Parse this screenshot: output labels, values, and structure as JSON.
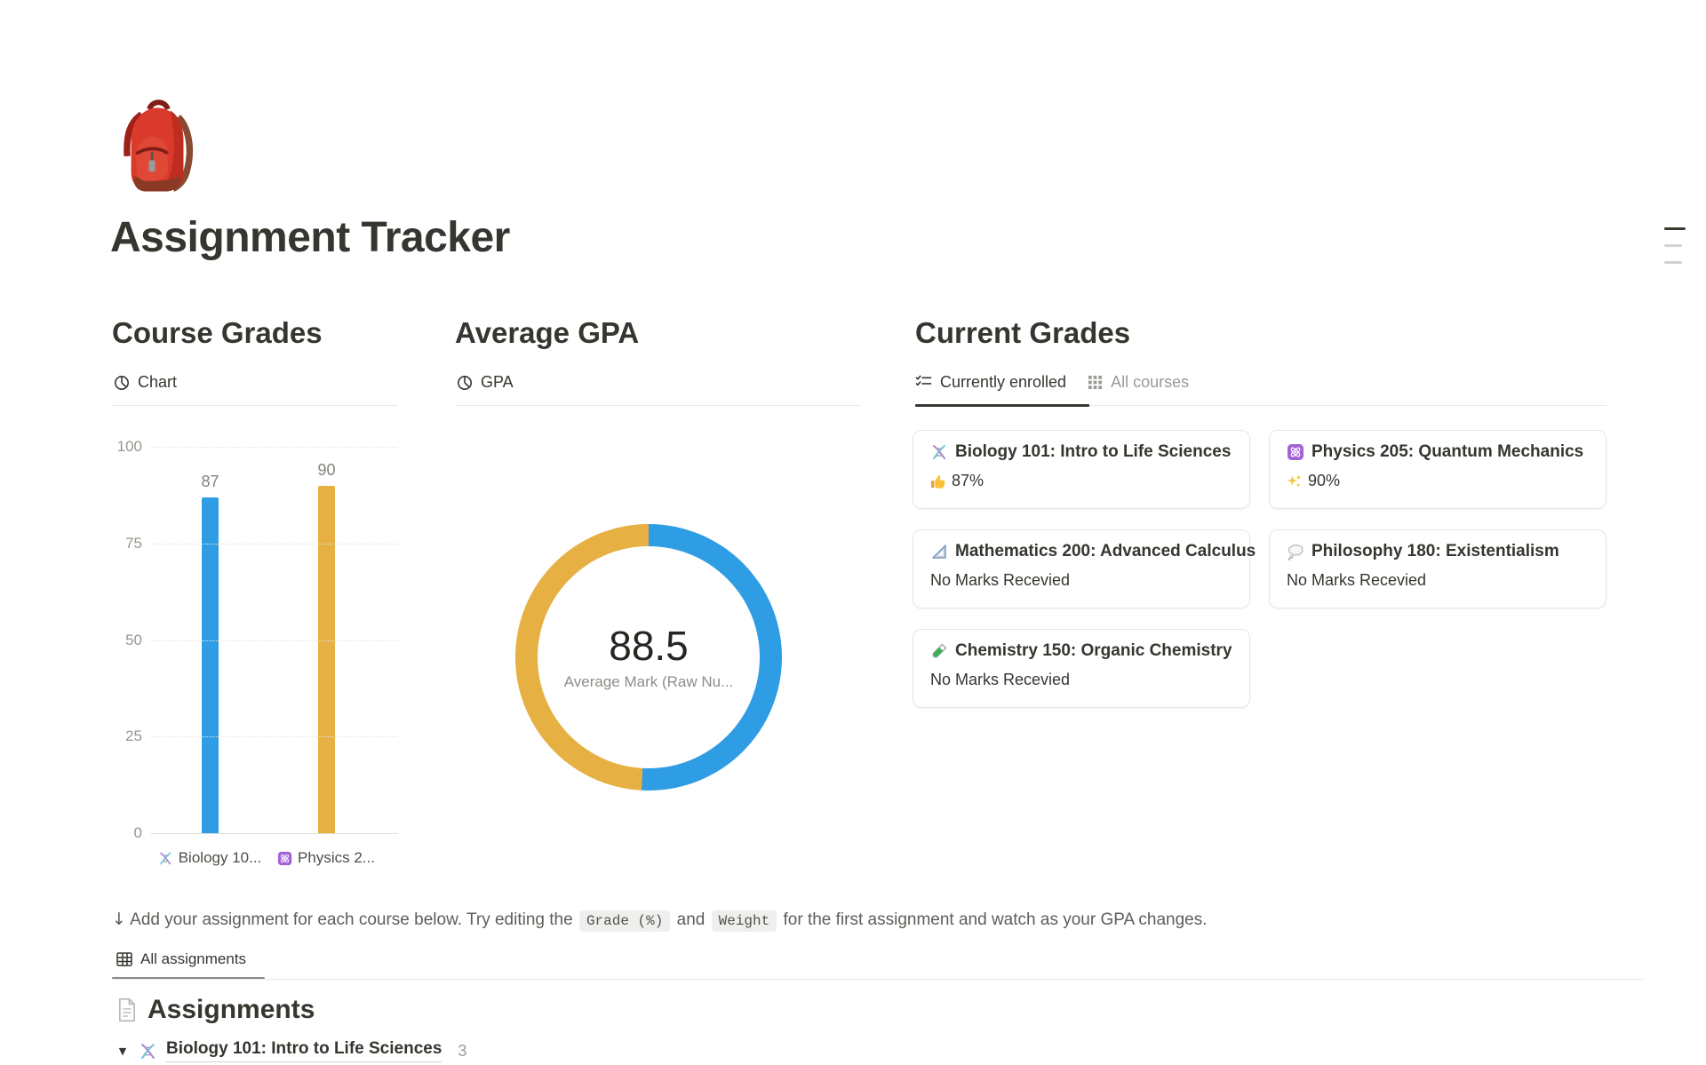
{
  "page": {
    "title": "Assignment Tracker",
    "icon": "red-backpack"
  },
  "sections": {
    "course_grades": {
      "heading": "Course Grades",
      "view_tab": "Chart"
    },
    "average_gpa": {
      "heading": "Average GPA",
      "view_tab": "GPA"
    },
    "current_grades": {
      "heading": "Current Grades",
      "tabs": [
        {
          "label": "Currently enrolled",
          "active": true
        },
        {
          "label": "All courses",
          "active": false
        }
      ]
    }
  },
  "chart_data": [
    {
      "type": "bar",
      "title": "Course Grades — Chart",
      "categories": [
        "Biology 10...",
        "Physics 2..."
      ],
      "category_icons": [
        "dna",
        "atom"
      ],
      "values": [
        87,
        90
      ],
      "colors": [
        "#2e9de4",
        "#e6b043"
      ],
      "ylim": [
        0,
        100
      ],
      "yticks": [
        0,
        25,
        50,
        75,
        100
      ],
      "grid": "dotted-horizontal",
      "legend": "none"
    },
    {
      "type": "pie",
      "subtype": "donut",
      "title": "Average GPA — GPA",
      "values": [
        90,
        87
      ],
      "colors": [
        "#2e9de4",
        "#e6b043"
      ],
      "center_value": "88.5",
      "center_label": "Average Mark (Raw Nu...",
      "legend": "none"
    }
  ],
  "cards": [
    {
      "icon": "dna",
      "title": "Biology 101: Intro to Life Sciences",
      "grade_icon": "thumbs-up",
      "grade": "87%"
    },
    {
      "icon": "atom",
      "title": "Physics 205: Quantum Mechanics",
      "grade_icon": "sparkles",
      "grade": "90%"
    },
    {
      "icon": "triangle-ruler",
      "title": "Mathematics 200: Advanced Calculus",
      "grade_icon": "",
      "grade": "No Marks Recevied"
    },
    {
      "icon": "thought-balloon",
      "title": "Philosophy 180: Existentialism",
      "grade_icon": "",
      "grade": "No Marks Recevied"
    },
    {
      "icon": "test-tube",
      "title": "Chemistry 150: Organic Chemistry",
      "grade_icon": "",
      "grade": "No Marks Recevied"
    }
  ],
  "description": {
    "arrow": "↓",
    "part1": " Add your assignment for each course below. Try editing the ",
    "code1": "Grade (%)",
    "part2": " and ",
    "code2": "Weight",
    "part3": " for the first assignment and watch as your GPA changes."
  },
  "assignments": {
    "view_tab": "All assignments",
    "heading": "Assignments",
    "groups": [
      {
        "icon": "dna",
        "title": "Biology 101: Intro to Life Sciences",
        "count": "3",
        "collapsed": false
      }
    ]
  }
}
